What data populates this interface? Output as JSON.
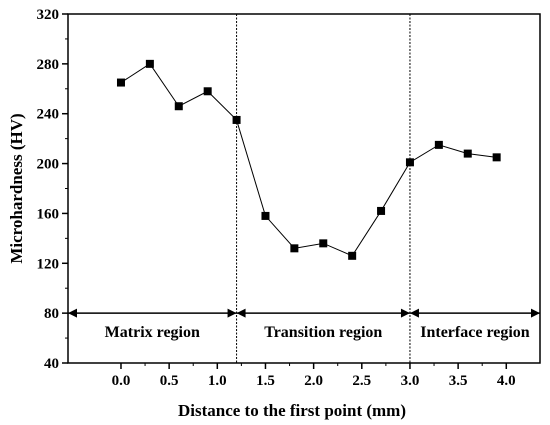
{
  "chart_data": {
    "type": "line",
    "title": "",
    "xlabel": "Distance to the first point (mm)",
    "ylabel": "Microhardness (HV)",
    "xlim": [
      -0.55,
      4.35
    ],
    "ylim": [
      40,
      320
    ],
    "xticks": [
      0.0,
      0.5,
      1.0,
      1.5,
      2.0,
      2.5,
      3.0,
      3.5,
      4.0
    ],
    "xtick_labels": [
      "0.0",
      "0.5",
      "1.0",
      "1.5",
      "2.0",
      "2.5",
      "3.0",
      "3.5",
      "4.0"
    ],
    "yticks": [
      40,
      80,
      120,
      160,
      200,
      240,
      280,
      320
    ],
    "ytick_labels": [
      "40",
      "80",
      "120",
      "160",
      "200",
      "240",
      "280",
      "320"
    ],
    "grid": false,
    "series": [
      {
        "marker": "square",
        "color": "#000000",
        "x": [
          0.0,
          0.3,
          0.6,
          0.9,
          1.2,
          1.5,
          1.8,
          2.1,
          2.4,
          2.7,
          3.0,
          3.3,
          3.6,
          3.9
        ],
        "y": [
          265,
          280,
          246,
          258,
          235,
          158,
          132,
          136,
          126,
          162,
          201,
          215,
          208,
          205
        ]
      }
    ],
    "boundaries": [
      1.2,
      3.0
    ],
    "regions": [
      {
        "label": "Matrix region",
        "x_start": -0.55,
        "x_end": 1.2,
        "y": 80
      },
      {
        "label": "Transition region",
        "x_start": 1.2,
        "x_end": 3.0,
        "y": 80
      },
      {
        "label": "Interface region",
        "x_start": 3.0,
        "x_end": 4.35,
        "y": 80
      }
    ]
  }
}
